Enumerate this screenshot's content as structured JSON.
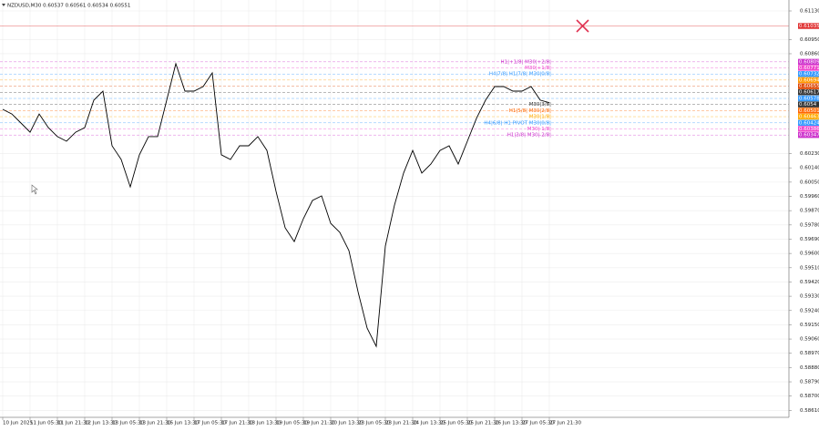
{
  "chart_data": {
    "type": "line",
    "title": "NZDUSD,M30  0.60537 0.60561 0.60534 0.60551",
    "categories": [
      "10 Jun 2025",
      null,
      null,
      "11 Jun 05:30",
      null,
      null,
      "11 Jun 21:30",
      null,
      null,
      "12 Jun 13:30",
      null,
      null,
      "13 Jun 05:30",
      null,
      null,
      "13 Jun 21:30",
      null,
      null,
      "16 Jun 13:30",
      null,
      null,
      "17 Jun 05:30",
      null,
      null,
      "17 Jun 21:30",
      null,
      null,
      "18 Jun 13:30",
      null,
      null,
      "19 Jun 05:30",
      null,
      null,
      "19 Jun 21:30",
      null,
      null,
      "20 Jun 13:30",
      null,
      null,
      "23 Jun 05:30",
      null,
      null,
      "23 Jun 21:30",
      null,
      null,
      "24 Jun 13:30",
      null,
      null,
      "25 Jun 05:30",
      null,
      null,
      "25 Jun 21:30",
      null,
      null,
      "26 Jun 13:30",
      null,
      null,
      "27 Jun 05:30",
      null,
      null,
      "27 Jun 21:30"
    ],
    "values": [
      0.60509,
      0.6048,
      0.60423,
      0.60365,
      0.6048,
      0.60394,
      0.60337,
      0.60308,
      0.60365,
      0.60394,
      0.60567,
      0.60624,
      0.60279,
      0.60193,
      0.6002,
      0.60222,
      0.60337,
      0.60337,
      0.60567,
      0.60797,
      0.60624,
      0.60624,
      0.60653,
      0.60739,
      0.60222,
      0.60193,
      0.60279,
      0.60279,
      0.60337,
      0.6025,
      0.59992,
      0.59762,
      0.59675,
      0.59819,
      0.59934,
      0.59963,
      0.5979,
      0.59733,
      0.59618,
      0.59359,
      0.59129,
      0.59014,
      0.59647,
      0.59905,
      0.60107,
      0.6025,
      0.60107,
      0.60164,
      0.6025,
      0.60279,
      0.60164,
      0.60308,
      0.60452,
      0.60567,
      0.60653,
      0.60653,
      0.60624,
      0.60624,
      0.60653,
      0.60567,
      0.60551
    ],
    "color": "#000000",
    "ylim": [
      0.58566,
      0.61199
    ],
    "yticks": [
      {
        "value": 0.6113,
        "label": "0.61130"
      },
      {
        "value": 0.6095,
        "label": "0.60950"
      },
      {
        "value": 0.6086,
        "label": "0.60860"
      },
      {
        "value": 0.6023,
        "label": "0.60230"
      },
      {
        "value": 0.6014,
        "label": "0.60140"
      },
      {
        "value": 0.6005,
        "label": "0.60050"
      },
      {
        "value": 0.5996,
        "label": "0.59960"
      },
      {
        "value": 0.5987,
        "label": "0.59870"
      },
      {
        "value": 0.5978,
        "label": "0.59780"
      },
      {
        "value": 0.5969,
        "label": "0.59690"
      },
      {
        "value": 0.596,
        "label": "0.59600"
      },
      {
        "value": 0.5951,
        "label": "0.59510"
      },
      {
        "value": 0.5942,
        "label": "0.59420"
      },
      {
        "value": 0.5933,
        "label": "0.59330"
      },
      {
        "value": 0.5924,
        "label": "0.59240"
      },
      {
        "value": 0.5915,
        "label": "0.59150"
      },
      {
        "value": 0.5906,
        "label": "0.59060"
      },
      {
        "value": 0.5897,
        "label": "0.58970"
      },
      {
        "value": 0.5888,
        "label": "0.58880"
      },
      {
        "value": 0.5879,
        "label": "0.58790"
      },
      {
        "value": 0.587,
        "label": "0.58700"
      },
      {
        "value": 0.5861,
        "label": "0.58610"
      }
    ],
    "grid": true,
    "current_line": {
      "value": 0.61035,
      "color": "#e03030"
    },
    "levels": [
      {
        "value": 0.60809,
        "color": "#cc33cc",
        "text": "H1|+1/8| M30|+2/8|"
      },
      {
        "value": 0.60771,
        "color": "#ee44cc",
        "text": "M30|+1/8|"
      },
      {
        "value": 0.60732,
        "color": "#3399ff",
        "text": "H4|7/8| H1|7/8| M30|0/8|"
      },
      {
        "value": 0.60694,
        "color": "#ff9900"
      },
      {
        "value": 0.60655,
        "color": "#dd4400"
      },
      {
        "value": 0.60617,
        "color": "#333333"
      },
      {
        "value": 0.60578,
        "color": "#3399ff"
      },
      {
        "value": 0.6054,
        "color": "#333333",
        "text": "M30|3/8|"
      },
      {
        "value": 0.60501,
        "color": "#ff6600",
        "text": "H1|5/8| M30|2/8|"
      },
      {
        "value": 0.60463,
        "color": "#ffaa00",
        "text": "M30|1/8|"
      },
      {
        "value": 0.60424,
        "color": "#3399ff",
        "text": "H4|6/8| H1 PIVOT M30|0/8|"
      },
      {
        "value": 0.60386,
        "color": "#ee44cc",
        "text": "M30|-1/8|"
      },
      {
        "value": 0.60347,
        "color": "#cc33cc",
        "text": "H1|3/8| M30|-2/8|"
      }
    ]
  }
}
